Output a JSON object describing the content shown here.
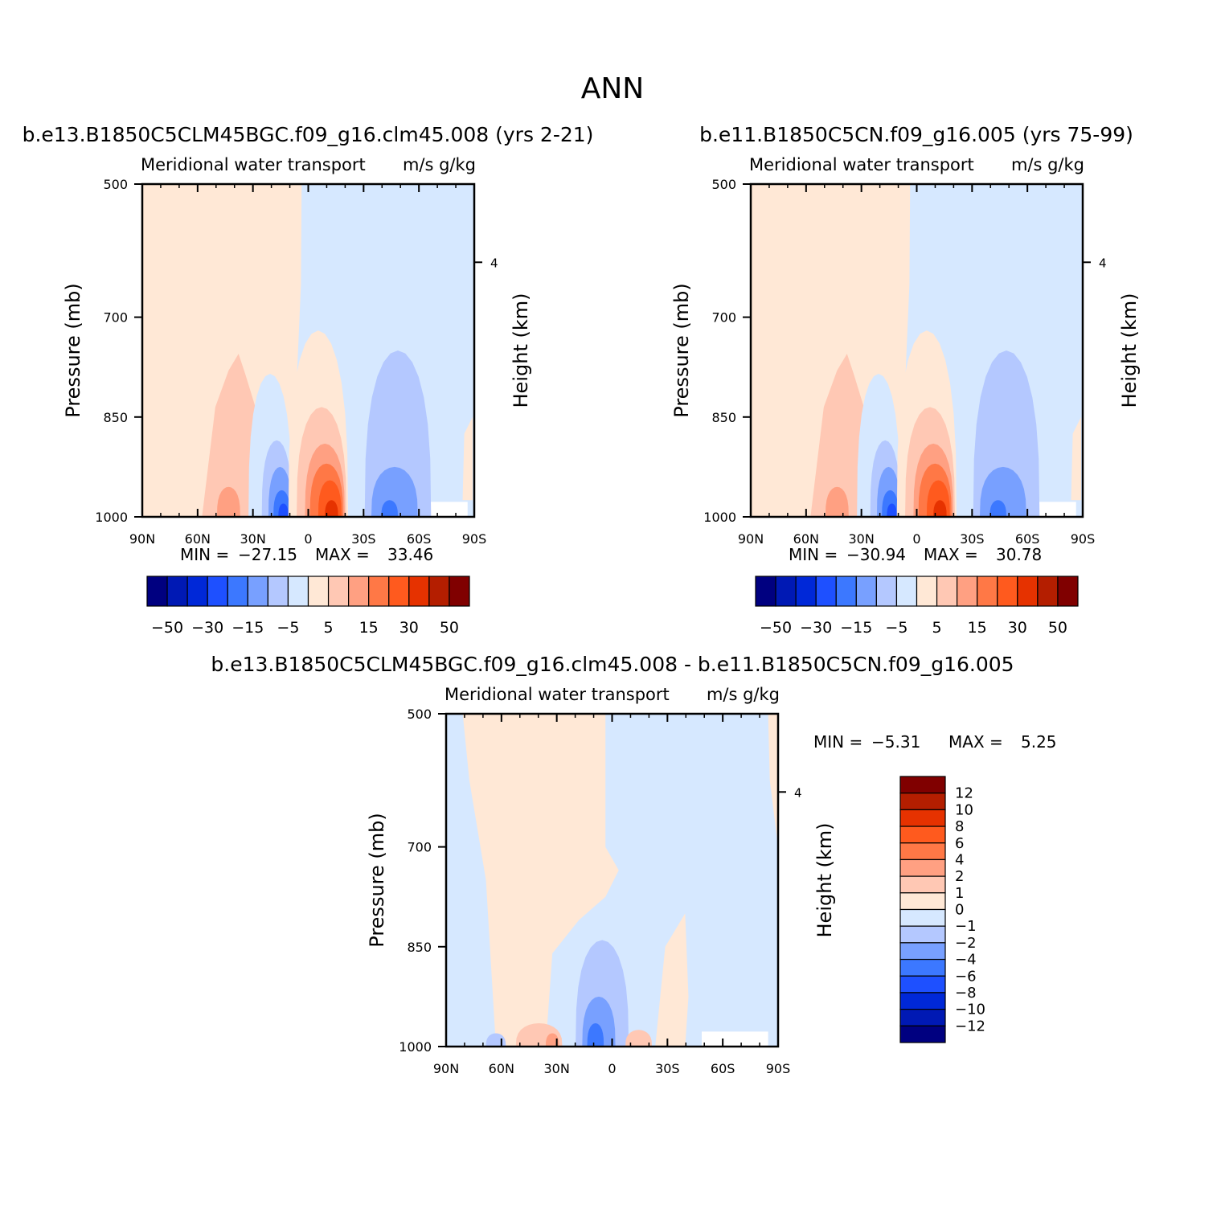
{
  "page_title": "ANN",
  "palette": [
    "#000080",
    "#0019b4",
    "#0028d8",
    "#1e50ff",
    "#3c78ff",
    "#78a0ff",
    "#b4c8ff",
    "#d6e8ff",
    "#ffe8d6",
    "#ffc8b4",
    "#ffa082",
    "#ff7846",
    "#ff5a1e",
    "#e63200",
    "#b41e00",
    "#800000"
  ],
  "chart_data": [
    {
      "id": "case1",
      "type": "contour",
      "title": "b.e13.B1850C5CLM45BGC.f09_g16.clm45.008 (yrs 2-21)",
      "subtitle": "Meridional water transport",
      "units": "m/s g/kg",
      "ylabel": "Pressure (mb)",
      "y2label": "Height (km)",
      "yticks": [
        "500",
        "700",
        "850",
        "1000"
      ],
      "y2ticks": [
        "4"
      ],
      "xticks": [
        "90N",
        "60N",
        "30N",
        "0",
        "30S",
        "60S",
        "90S"
      ],
      "x_range": [
        90,
        -90
      ],
      "y_range": [
        500,
        1000
      ],
      "min_label": "MIN =",
      "min": "-27.15",
      "max_label": "MAX =",
      "max": "33.46",
      "colorbar_labels": [
        "-50",
        "-30",
        "-15",
        "-5",
        "5",
        "15",
        "30",
        "50"
      ]
    },
    {
      "id": "case2",
      "type": "contour",
      "title": "b.e11.B1850C5CN.f09_g16.005 (yrs 75-99)",
      "subtitle": "Meridional water transport",
      "units": "m/s g/kg",
      "ylabel": "Pressure (mb)",
      "y2label": "Height (km)",
      "yticks": [
        "500",
        "700",
        "850",
        "1000"
      ],
      "y2ticks": [
        "4"
      ],
      "xticks": [
        "90N",
        "60N",
        "30N",
        "0",
        "30S",
        "60S",
        "90S"
      ],
      "x_range": [
        90,
        -90
      ],
      "y_range": [
        500,
        1000
      ],
      "min_label": "MIN =",
      "min": "-30.94",
      "max_label": "MAX =",
      "max": "30.78",
      "colorbar_labels": [
        "-50",
        "-30",
        "-15",
        "-5",
        "5",
        "15",
        "30",
        "50"
      ]
    },
    {
      "id": "diff",
      "type": "contour",
      "title": "b.e13.B1850C5CLM45BGC.f09_g16.clm45.008 - b.e11.B1850C5CN.f09_g16.005",
      "subtitle": "Meridional water transport",
      "units": "m/s g/kg",
      "ylabel": "Pressure (mb)",
      "y2label": "Height (km)",
      "yticks": [
        "500",
        "700",
        "850",
        "1000"
      ],
      "y2ticks": [
        "4"
      ],
      "xticks": [
        "90N",
        "60N",
        "30N",
        "0",
        "30S",
        "60S",
        "90S"
      ],
      "x_range": [
        90,
        -90
      ],
      "y_range": [
        500,
        1000
      ],
      "min_label": "MIN =",
      "min": "-5.31",
      "max_label": "MAX =",
      "max": "5.25",
      "colorbar_labels": [
        "12",
        "10",
        "8",
        "6",
        "4",
        "2",
        "1",
        "0",
        "-1",
        "-2",
        "-4",
        "-6",
        "-8",
        "-10",
        "-12"
      ]
    }
  ]
}
